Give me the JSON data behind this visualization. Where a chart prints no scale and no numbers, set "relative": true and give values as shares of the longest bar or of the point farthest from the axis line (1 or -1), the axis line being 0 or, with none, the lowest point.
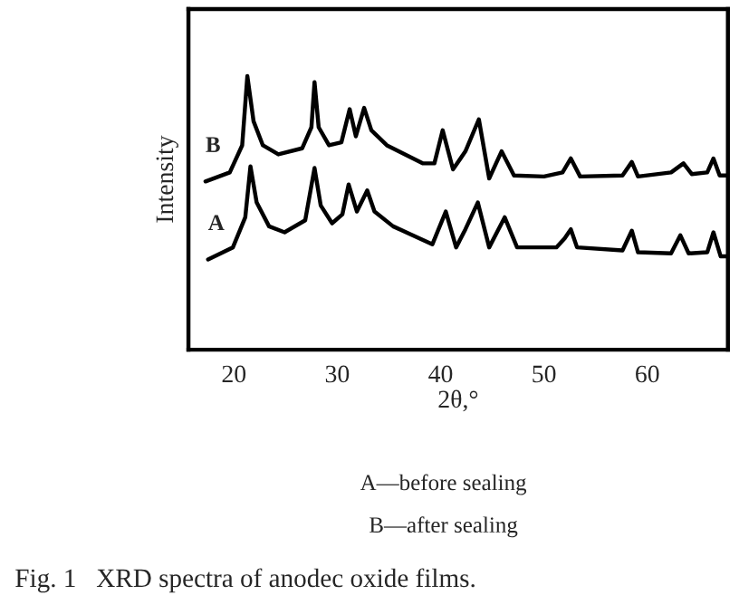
{
  "chart_data": {
    "type": "line",
    "relative": true,
    "xlabel": "2θ,°",
    "ylabel": "Intensity",
    "title": "Fig. 1   XRD spectra of anodec oxide films.",
    "annotations": [
      "A—before sealing",
      "B—after sealing"
    ],
    "xlim": [
      15.6,
      67.8
    ],
    "xticks": [
      20,
      30,
      40,
      50,
      60
    ],
    "grid": false,
    "legend": false,
    "marker": "none",
    "line_style": "solid",
    "series": [
      {
        "name": "B",
        "color": "#000000",
        "x": [
          17.25,
          19.6,
          20.8,
          21.3,
          21.9,
          22.8,
          24.3,
          26.6,
          27.5,
          27.8,
          28.2,
          29.2,
          30.4,
          31.2,
          31.8,
          32.6,
          33.3,
          34.8,
          38.3,
          39.4,
          40.2,
          41.2,
          42.4,
          43.7,
          44.7,
          45.9,
          47.1,
          50.0,
          51.8,
          52.6,
          53.5,
          57.6,
          58.5,
          59.1,
          62.3,
          63.5,
          64.3,
          65.8,
          66.4,
          67.0,
          67.8
        ],
        "values": [
          0.615,
          0.648,
          0.747,
          1.0,
          0.835,
          0.747,
          0.714,
          0.736,
          0.813,
          0.978,
          0.813,
          0.747,
          0.758,
          0.879,
          0.78,
          0.884,
          0.802,
          0.747,
          0.681,
          0.681,
          0.802,
          0.659,
          0.725,
          0.842,
          0.626,
          0.725,
          0.637,
          0.633,
          0.648,
          0.699,
          0.633,
          0.637,
          0.686,
          0.633,
          0.648,
          0.681,
          0.642,
          0.648,
          0.699,
          0.637,
          0.637
        ]
      },
      {
        "name": "A",
        "color": "#000000",
        "x": [
          17.5,
          19.9,
          21.1,
          21.6,
          22.2,
          23.4,
          24.9,
          26.9,
          27.8,
          28.4,
          29.5,
          30.5,
          31.1,
          31.9,
          32.9,
          33.6,
          35.4,
          39.2,
          40.5,
          41.5,
          42.4,
          43.6,
          44.7,
          46.2,
          47.4,
          51.2,
          52.0,
          52.6,
          53.2,
          57.6,
          58.5,
          59.1,
          62.3,
          63.2,
          64.0,
          65.8,
          66.4,
          67.1,
          67.8
        ],
        "values": [
          0.33,
          0.374,
          0.484,
          0.67,
          0.538,
          0.451,
          0.429,
          0.473,
          0.664,
          0.527,
          0.462,
          0.495,
          0.604,
          0.505,
          0.582,
          0.505,
          0.451,
          0.385,
          0.505,
          0.374,
          0.44,
          0.538,
          0.374,
          0.484,
          0.374,
          0.374,
          0.407,
          0.44,
          0.374,
          0.363,
          0.435,
          0.356,
          0.352,
          0.418,
          0.352,
          0.356,
          0.429,
          0.341,
          0.341
        ]
      }
    ]
  }
}
